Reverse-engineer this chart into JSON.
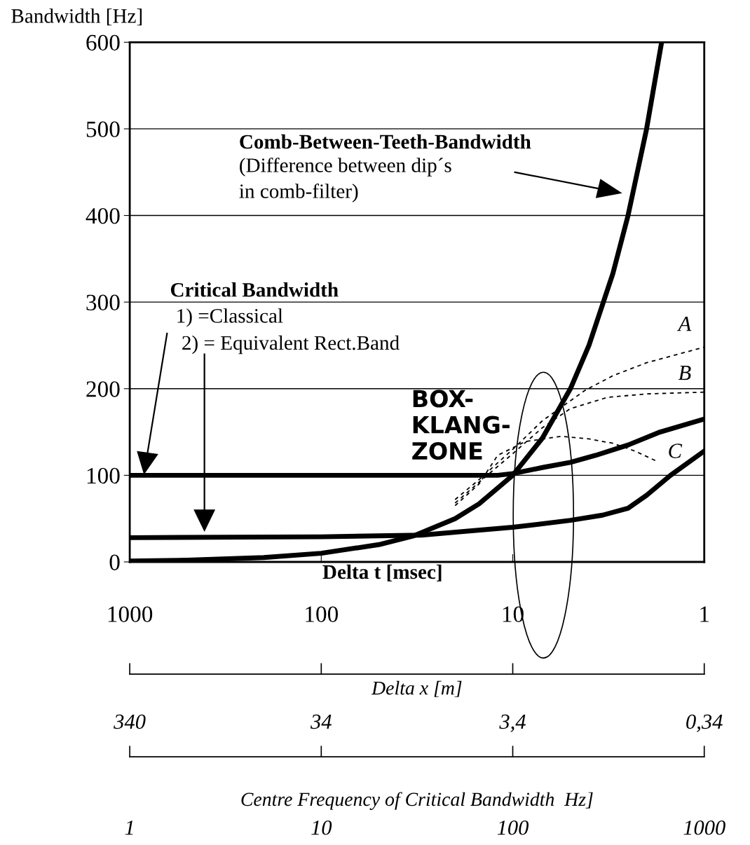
{
  "chart_data": {
    "type": "line",
    "ylabel": "Bandwidth [Hz]",
    "xlabel": "Delta t [msec]",
    "log": "x",
    "xlim": [
      1000,
      1
    ],
    "xticks": [
      1000,
      100,
      10,
      1
    ],
    "ylim": [
      0,
      600
    ],
    "yticks": [
      0,
      100,
      200,
      300,
      400,
      500,
      600
    ],
    "grid": "y",
    "marker": "none",
    "series": [
      {
        "color": "#000000",
        "line_style": "solid",
        "x": [
          1000,
          500,
          200,
          100,
          50,
          33,
          20,
          15,
          10,
          7,
          5,
          4,
          3,
          2.5,
          2,
          1.67
        ],
        "values": [
          1,
          2,
          5,
          10,
          20,
          30,
          50,
          67,
          100,
          143,
          200,
          250,
          333,
          400,
          500,
          600
        ]
      },
      {
        "color": "#000000",
        "line_style": "solid",
        "x": [
          1000,
          100,
          20,
          12,
          10,
          7,
          5,
          3.7,
          2.5,
          1.7,
          1
        ],
        "values": [
          100,
          100,
          100,
          100,
          102,
          109,
          115,
          123,
          135,
          150,
          165
        ]
      },
      {
        "color": "#000000",
        "line_style": "solid",
        "x": [
          1000,
          100,
          30,
          10,
          5,
          3.4,
          2.5,
          2,
          1.5,
          1
        ],
        "values": [
          28,
          29,
          31,
          40,
          48,
          54,
          62,
          77,
          100,
          128
        ]
      },
      {
        "color": "#000000",
        "line_style": "dashed",
        "x": [
          20,
          15,
          10,
          7,
          4.2,
          3,
          2,
          1
        ],
        "values": [
          72,
          95,
          130,
          163,
          198,
          215,
          230,
          248
        ]
      },
      {
        "color": "#000000",
        "line_style": "dashed",
        "x": [
          20,
          15,
          10,
          7,
          5,
          3.2,
          2,
          1
        ],
        "values": [
          68,
          92,
          125,
          155,
          177,
          190,
          194,
          196
        ]
      },
      {
        "color": "#000000",
        "line_style": "dashed",
        "x": [
          20,
          15,
          12,
          8.6,
          5.6,
          4,
          3,
          2.3,
          1.8
        ],
        "values": [
          65,
          90,
          123,
          139,
          145,
          142,
          137,
          128,
          117
        ]
      }
    ],
    "annotations": [
      "Comb-Between-Teeth-Bandwidth",
      "(Difference between dip´s\nin comb-filter)",
      "Critical Bandwidth",
      "1) =Classical",
      "2) = Equivalent Rect.Band",
      "BOX-\nKLANG-\nZONE",
      "A",
      "B",
      "C",
      "Delta x [m]",
      "340",
      "34",
      "3,4",
      "0,34",
      "Centre Frequency of Critical Bandwidth  Hz]",
      "1",
      "10",
      "100",
      "1000"
    ]
  }
}
